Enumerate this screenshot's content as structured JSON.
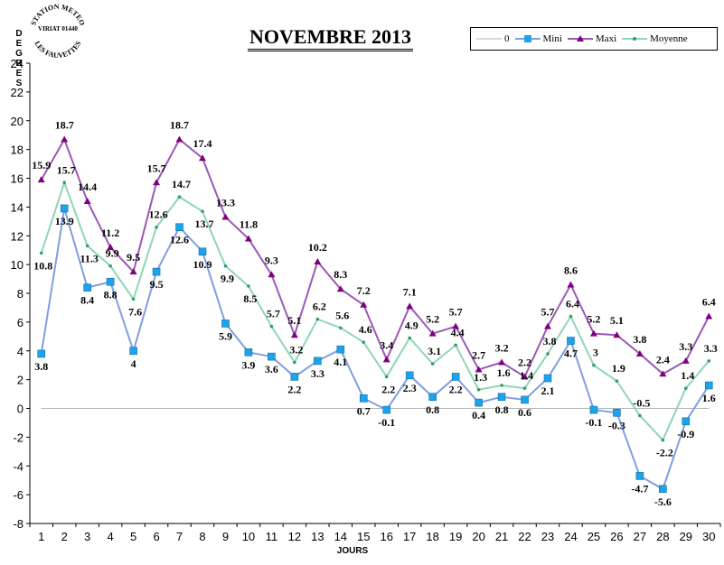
{
  "stamp": {
    "top": "STATION METEO",
    "middle": "VIRIAT 01440",
    "bottom": "LES FAUVETTES"
  },
  "chart_data": {
    "type": "line",
    "title": "NOVEMBRE 2013",
    "ylabel": "DEGRES",
    "xlabel": "JOURS",
    "x": [
      1,
      2,
      3,
      4,
      5,
      6,
      7,
      8,
      9,
      10,
      11,
      12,
      13,
      14,
      15,
      16,
      17,
      18,
      19,
      20,
      21,
      22,
      23,
      24,
      25,
      26,
      27,
      28,
      29,
      30
    ],
    "ylim": [
      -8,
      24
    ],
    "ytick_step": 2,
    "legend_position": "top-right",
    "series": [
      {
        "name": "0",
        "color": "#b3b3b3",
        "values": [
          0,
          0,
          0,
          0,
          0,
          0,
          0,
          0,
          0,
          0,
          0,
          0,
          0,
          0,
          0,
          0,
          0,
          0,
          0,
          0,
          0,
          0,
          0,
          0,
          0,
          0,
          0,
          0,
          0,
          0
        ]
      },
      {
        "name": "Mini",
        "color": "#7f9fe0",
        "marker_color": "#1fa3e8",
        "values": [
          3.8,
          13.9,
          8.4,
          8.8,
          4,
          9.5,
          12.6,
          10.9,
          5.9,
          3.9,
          3.6,
          2.2,
          3.3,
          4.1,
          0.7,
          -0.1,
          2.3,
          0.8,
          2.2,
          0.4,
          0.8,
          0.6,
          2.1,
          4.7,
          -0.1,
          -0.3,
          -4.7,
          -5.6,
          -0.9,
          1.6
        ]
      },
      {
        "name": "Maxi",
        "color": "#9b59b6",
        "marker_color": "#800080",
        "values": [
          15.9,
          18.7,
          14.4,
          11.2,
          9.5,
          15.7,
          18.7,
          17.4,
          13.3,
          11.8,
          9.3,
          5.1,
          10.2,
          8.3,
          7.2,
          3.4,
          7.1,
          5.2,
          5.7,
          2.7,
          3.2,
          2.2,
          5.7,
          8.6,
          5.2,
          5.1,
          3.8,
          2.4,
          3.3,
          6.4
        ]
      },
      {
        "name": "Moyenne",
        "color": "#8fd6b5",
        "marker_color": "#2e9e6b",
        "values": [
          10.8,
          15.7,
          11.3,
          9.9,
          7.6,
          12.6,
          14.7,
          13.7,
          9.9,
          8.5,
          5.7,
          3.2,
          6.2,
          5.6,
          4.6,
          2.2,
          4.9,
          3.1,
          4.4,
          1.3,
          1.6,
          1.4,
          3.8,
          6.4,
          3,
          1.9,
          -0.5,
          -2.2,
          1.4,
          3.3
        ]
      }
    ]
  }
}
